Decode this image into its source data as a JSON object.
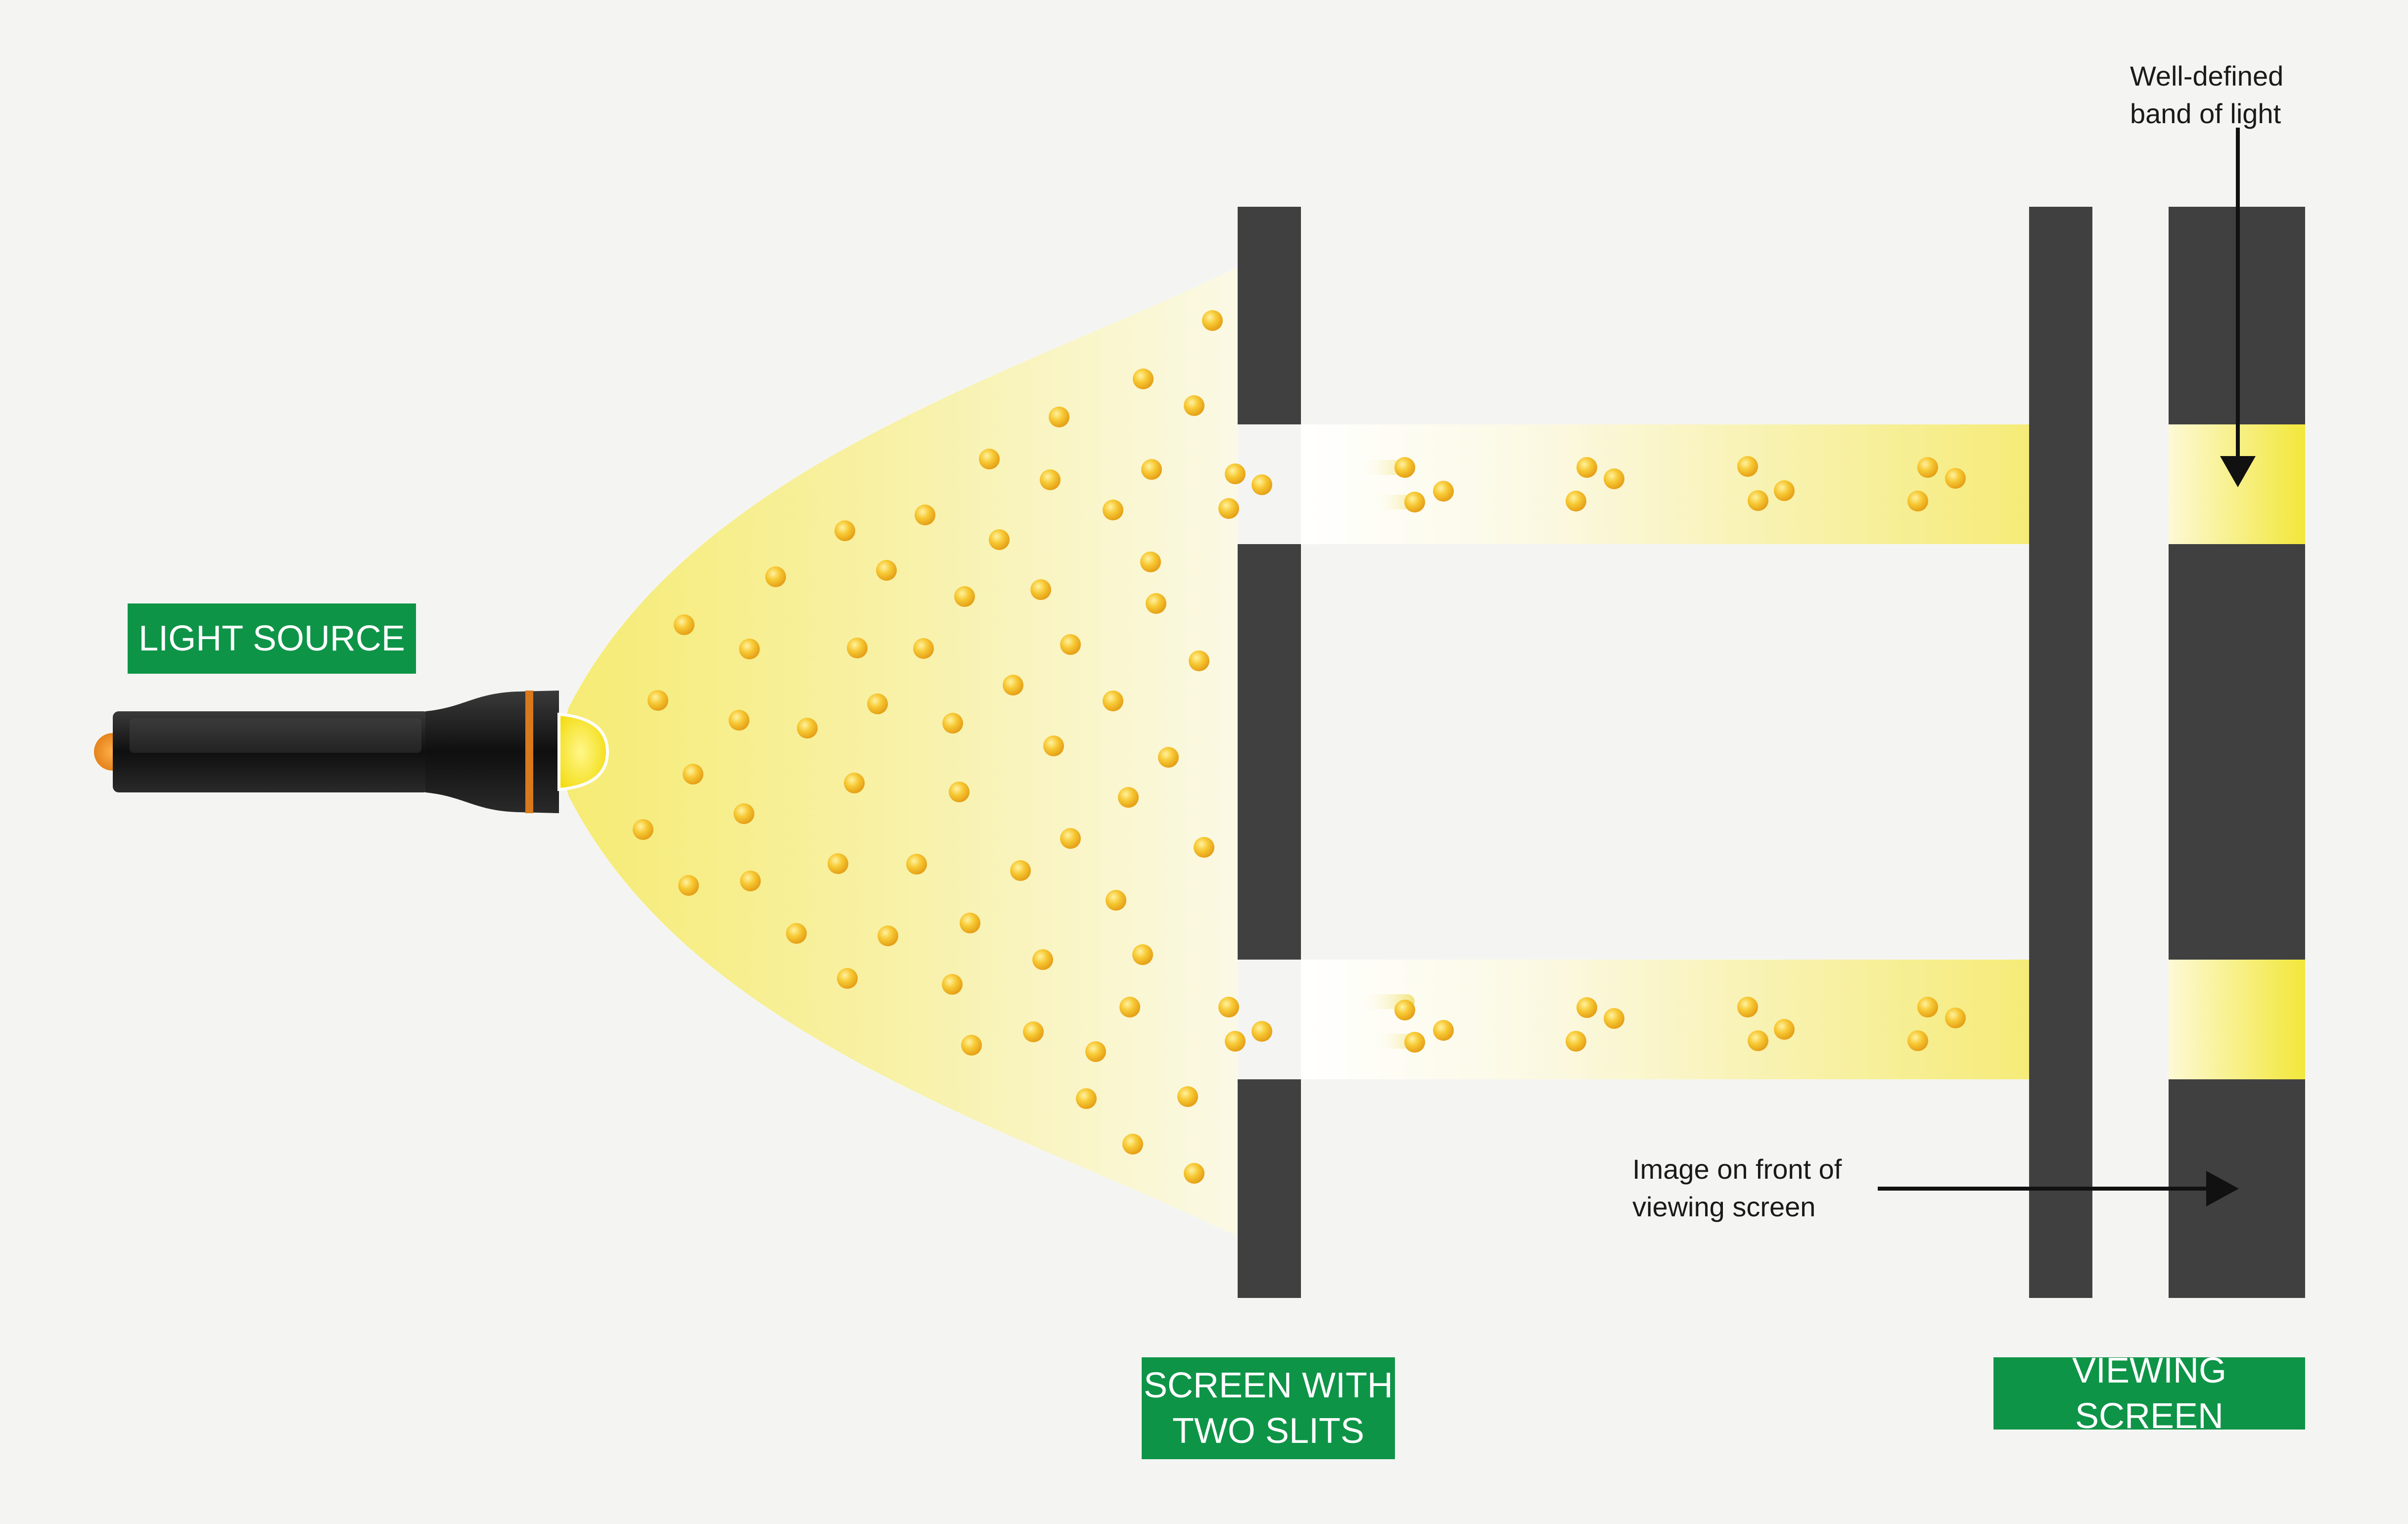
{
  "labels": {
    "light_source": "LIGHT SOURCE",
    "two_slits_line1": "SCREEN WITH",
    "two_slits_line2": "TWO SLITS",
    "viewing_screen": "VIEWING SCREEN"
  },
  "annotations": {
    "band_line1": "Well-defined",
    "band_line2": "band of light",
    "image_line1": "Image on front of",
    "image_line2": "viewing screen"
  },
  "colors": {
    "background": "#f4f5f3",
    "label_green": "#0e9447",
    "screen_gray": "#404041",
    "beam_yellow": "#f5ea6a",
    "particle": "#f2b81d",
    "flashlight": "#1b1b1b",
    "ring": "#d8791c"
  },
  "icons": [
    "flashlight-icon",
    "photon-particle-icon",
    "arrow-icon"
  ]
}
